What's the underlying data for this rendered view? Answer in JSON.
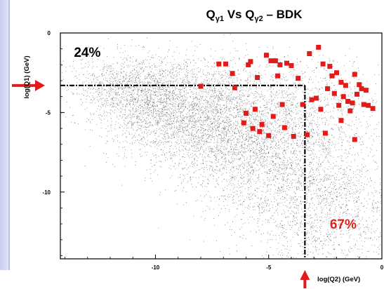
{
  "chart_data": {
    "type": "scatter",
    "title": {
      "q": "Q",
      "sub1": "γ1",
      "vs": " Vs ",
      "sub2": "γ2",
      "suffix": "  –  BDK"
    },
    "xlabel": "log(Q2) (GeV)",
    "ylabel": "log(Q1) (GeV)",
    "xlim": [
      -14.2,
      0
    ],
    "ylim": [
      -14.2,
      0
    ],
    "xticks": [
      {
        "value": -10,
        "label": "-10"
      },
      {
        "value": -5,
        "label": "-5"
      },
      {
        "value": 0,
        "label": "0"
      }
    ],
    "yticks": [
      {
        "value": 0,
        "label": "0"
      },
      {
        "value": -5,
        "label": "-5"
      },
      {
        "value": -10,
        "label": "-10"
      }
    ],
    "cut_lines": {
      "x": -3.4,
      "y": -3.3
    },
    "annotations": [
      {
        "text": "24%",
        "x": -13.6,
        "y": -1.5,
        "color": "#000000"
      },
      {
        "text": "67%",
        "x": -2.3,
        "y": -12.3,
        "color": "#e0201a"
      }
    ],
    "colors": {
      "background_points": "#555555",
      "signal_points": "#e21a1a",
      "arrows": "#e21a1a",
      "left_strip": "#d3d8f4"
    },
    "series": [
      {
        "role": "background",
        "x": [
          -12.5,
          -12,
          -11.6,
          -11.2,
          -10.9,
          -10.6,
          -10.3,
          -10,
          -9.7,
          -9.5,
          -9.2,
          -9,
          -8.8,
          -8.5,
          -8.3,
          -8,
          -7.8,
          -7.5,
          -7.2,
          -7,
          -6.8,
          -6.5,
          -6.2,
          -6,
          -5.8,
          -5.5,
          -5.2,
          -5,
          -4.8,
          -4.5,
          -4.2,
          -4,
          -3.8,
          -3.5,
          -3.2,
          -3,
          -2.8,
          -2.5,
          -2.2,
          -2,
          -1.8,
          -1.5,
          -1.2,
          -1,
          -0.8,
          -0.5,
          -9.8,
          -8.6,
          -7.4,
          -6.3,
          -5.1,
          -4.3,
          -3.6,
          -2.9,
          -2.3,
          -1.7,
          -7.9,
          -6.6,
          -5.6,
          -4.6,
          -3.9,
          -3.1,
          -2.4,
          -1.9,
          -6.1,
          -5.3,
          -4.4,
          -3.7,
          -2.7,
          -2.1,
          -5.9,
          -4.9,
          -4.1,
          -3.3,
          -2.6,
          -1.4
        ],
        "y": [
          -3.5,
          -3.2,
          -3.9,
          -3.4,
          -4.2,
          -3.6,
          -4.5,
          -3.9,
          -4.8,
          -4.1,
          -5.2,
          -4.6,
          -5.5,
          -4.9,
          -5.8,
          -5.3,
          -6.1,
          -5.7,
          -6.4,
          -6,
          -6.8,
          -6.3,
          -7.1,
          -6.7,
          -7.4,
          -7,
          -7.8,
          -7.5,
          -8.1,
          -7.9,
          -8.5,
          -8.3,
          -8.9,
          -8.8,
          -9.3,
          -9.2,
          -9.8,
          -9.7,
          -10.4,
          -10.3,
          -11,
          -11.1,
          -11.8,
          -12,
          -12.5,
          -12.9,
          -2.4,
          -2.1,
          -1.9,
          -1.6,
          -1.4,
          -1.5,
          -1.8,
          -2.2,
          -2.6,
          -3.1,
          -8.2,
          -9.1,
          -9.9,
          -10.8,
          -11.5,
          -12.2,
          -12.8,
          -13.3,
          -10.6,
          -11.3,
          -12.1,
          -12.7,
          -13.1,
          -13.6,
          -4,
          -3.4,
          -5.1,
          -6.2,
          -7.3,
          -8.6
        ]
      },
      {
        "role": "signal",
        "x": [
          -7.2,
          -6.9,
          -6.6,
          -5.9,
          -5.8,
          -5.5,
          -4.7,
          -4.5,
          -4.2,
          -4.0,
          -3.2,
          -2.8,
          -2.6,
          -2.3,
          -2.2,
          -2.0,
          -1.8,
          -1.6,
          -1.2,
          -1.0,
          -0.9,
          -0.7,
          -8.0,
          -6.5,
          -5.1,
          -4.9,
          -4.6,
          -3.7,
          -3.1,
          -2.9,
          -2.4,
          -2.1,
          -1.5,
          -1.3,
          -1.1,
          -0.8,
          -0.4,
          -6.0,
          -5.6,
          -5.3,
          -4.8,
          -4.4,
          -3.5,
          -2.7,
          -1.9,
          -1.7,
          -1.4,
          -0.6,
          -6.1,
          -5.7,
          -5.4,
          -5.0,
          -4.3,
          -3.9,
          -3.3,
          -2.5,
          -1.8,
          -1.2
        ],
        "y": [
          -1.95,
          -1.95,
          -2.55,
          -2.0,
          -1.8,
          -2.8,
          -1.75,
          -2.0,
          -1.9,
          -2.05,
          -1.3,
          -0.9,
          -1.95,
          -2.1,
          -2.7,
          -2.5,
          -3.1,
          -3.3,
          -2.6,
          -3.25,
          -3.5,
          -3.6,
          -3.35,
          -3.45,
          -1.4,
          -1.75,
          -2.7,
          -2.85,
          -4.2,
          -4.1,
          -3.5,
          -3.8,
          -4.3,
          -4.4,
          -3.85,
          -4.5,
          -4.75,
          -5.05,
          -4.8,
          -5.75,
          -5.25,
          -4.5,
          -4.5,
          -4.8,
          -4.55,
          -4.0,
          -4.9,
          -4.55,
          -5.65,
          -6.0,
          -6.2,
          -6.45,
          -5.95,
          -6.5,
          -6.4,
          -6.3,
          -5.5,
          -6.7
        ]
      }
    ],
    "arrows": [
      {
        "direction": "right",
        "target_axis": "y",
        "value": -3.3
      },
      {
        "direction": "up",
        "target_axis": "x",
        "value": -3.4
      }
    ]
  }
}
